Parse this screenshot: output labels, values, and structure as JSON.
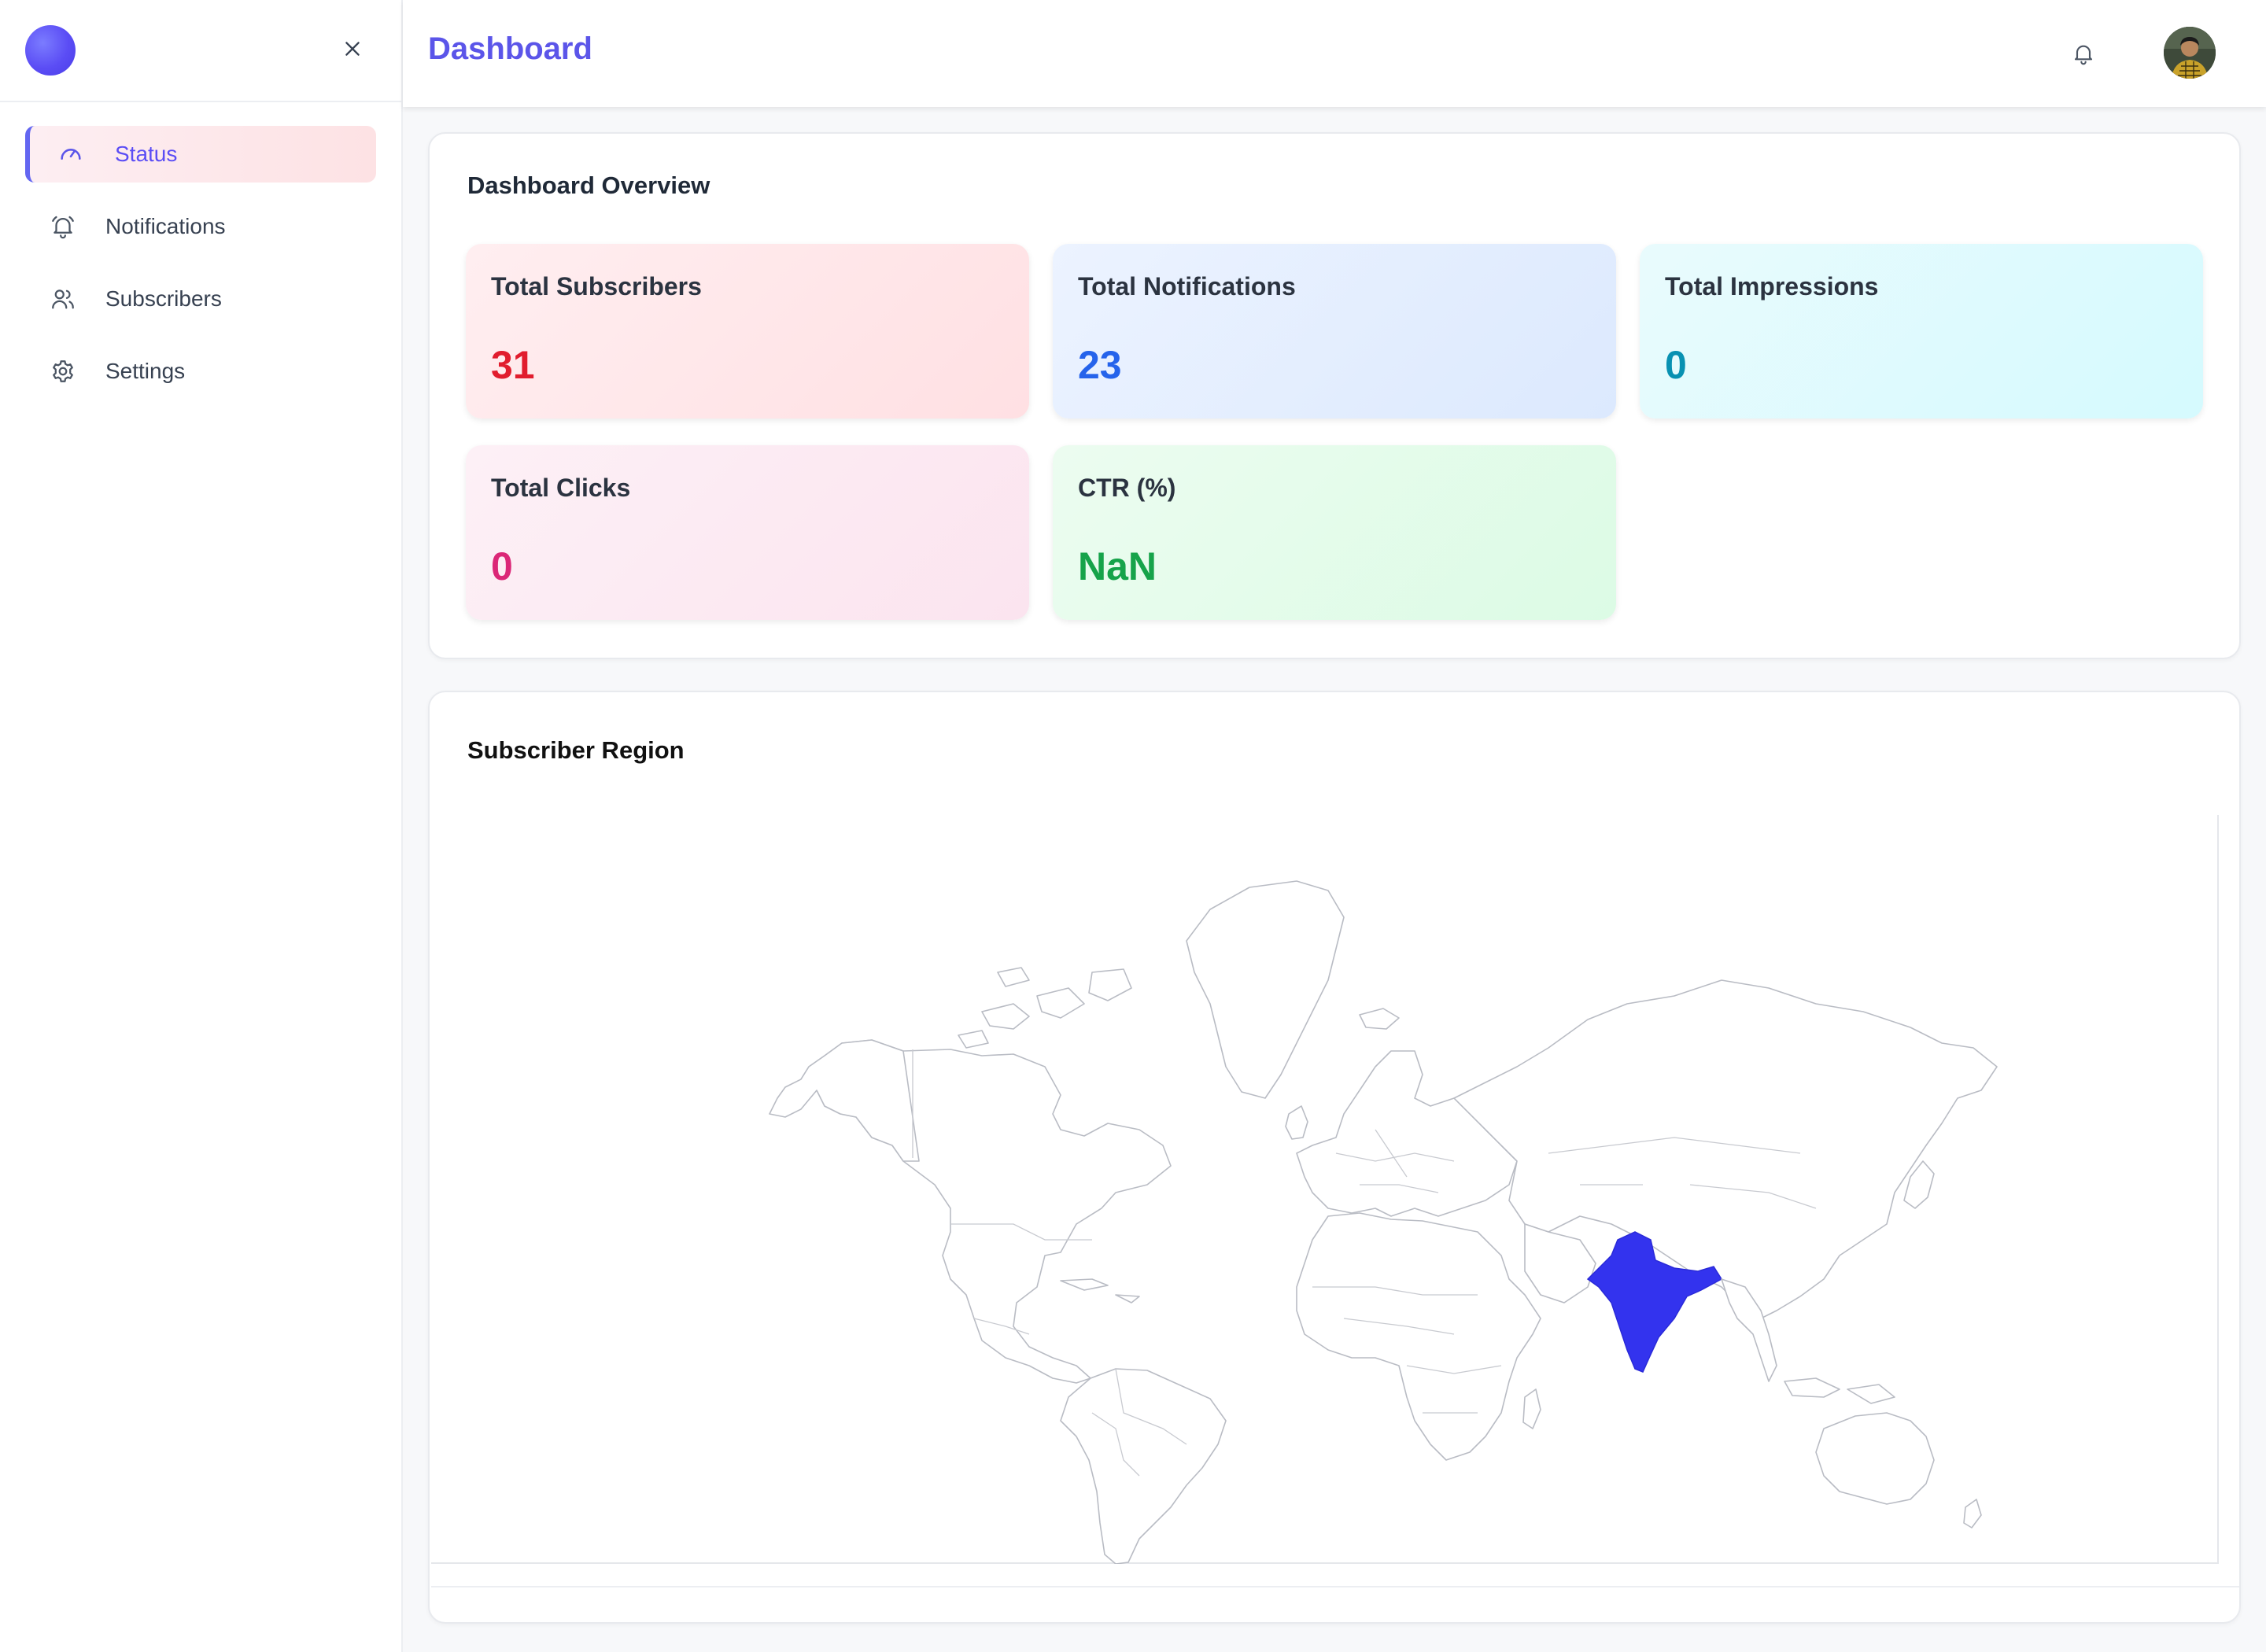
{
  "header": {
    "title": "Dashboard"
  },
  "sidebar": {
    "items": [
      {
        "label": "Status",
        "icon": "gauge-icon",
        "active": true
      },
      {
        "label": "Notifications",
        "icon": "bell-icon",
        "active": false
      },
      {
        "label": "Subscribers",
        "icon": "users-icon",
        "active": false
      },
      {
        "label": "Settings",
        "icon": "gear-icon",
        "active": false
      }
    ]
  },
  "overview": {
    "title": "Dashboard Overview",
    "stats": [
      {
        "label": "Total Subscribers",
        "value": "31",
        "color": "#e11d2e"
      },
      {
        "label": "Total Notifications",
        "value": "23",
        "color": "#2563eb"
      },
      {
        "label": "Total Impressions",
        "value": "0",
        "color": "#0891b2"
      },
      {
        "label": "Total Clicks",
        "value": "0",
        "color": "#db2777"
      },
      {
        "label": "CTR (%)",
        "value": "NaN",
        "color": "#16a34a"
      }
    ]
  },
  "region": {
    "title": "Subscriber Region",
    "highlighted_country": "India",
    "highlight_color": "#3333ee"
  },
  "colors": {
    "accent": "#5b55e9",
    "active_nav_bg": "#fde2e4"
  }
}
